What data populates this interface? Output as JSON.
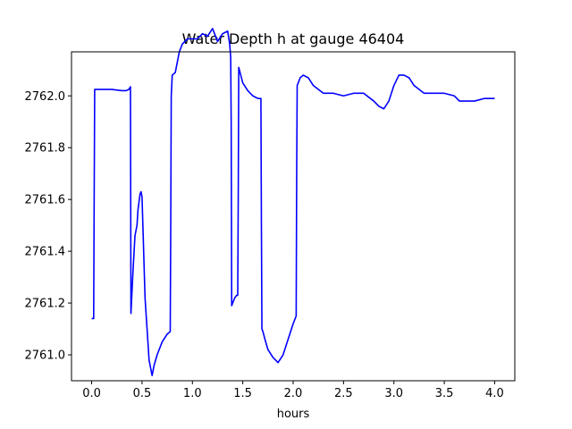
{
  "chart_data": {
    "type": "line",
    "title": "Water Depth h at gauge 46404",
    "xlabel": "hours",
    "ylabel": "",
    "xlim": [
      -0.2,
      4.2
    ],
    "ylim": [
      2760.9,
      2762.17
    ],
    "x_ticks": [
      0.0,
      0.5,
      1.0,
      1.5,
      2.0,
      2.5,
      3.0,
      3.5,
      4.0
    ],
    "x_tick_labels": [
      "0.0",
      "0.5",
      "1.0",
      "1.5",
      "2.0",
      "2.5",
      "3.0",
      "3.5",
      "4.0"
    ],
    "y_ticks": [
      2761.0,
      2761.2,
      2761.4,
      2761.6,
      2761.8,
      2762.0
    ],
    "y_tick_labels": [
      "2761.0",
      "2761.2",
      "2761.4",
      "2761.6",
      "2761.8",
      "2762.0"
    ],
    "grid": false,
    "series": [
      {
        "color": "#0000ff",
        "x": [
          0.0,
          0.02,
          0.025,
          0.03,
          0.1,
          0.2,
          0.3,
          0.34,
          0.37,
          0.385,
          0.386,
          0.39,
          0.41,
          0.43,
          0.45,
          0.46,
          0.48,
          0.49,
          0.5,
          0.51,
          0.53,
          0.55,
          0.57,
          0.6,
          0.62,
          0.65,
          0.7,
          0.75,
          0.78,
          0.785,
          0.79,
          0.8,
          0.83,
          0.87,
          0.9,
          0.95,
          1.0,
          1.05,
          1.1,
          1.15,
          1.2,
          1.25,
          1.3,
          1.35,
          1.37,
          1.38,
          1.385,
          1.39,
          1.4,
          1.42,
          1.44,
          1.45,
          1.455,
          1.46,
          1.48,
          1.5,
          1.55,
          1.6,
          1.65,
          1.68,
          1.685,
          1.69,
          1.7,
          1.72,
          1.75,
          1.8,
          1.85,
          1.9,
          1.95,
          2.0,
          2.03,
          2.035,
          2.04,
          2.07,
          2.1,
          2.15,
          2.2,
          2.3,
          2.4,
          2.5,
          2.6,
          2.7,
          2.8,
          2.85,
          2.9,
          2.95,
          3.0,
          3.05,
          3.1,
          3.15,
          3.2,
          3.3,
          3.4,
          3.5,
          3.6,
          3.65,
          3.7,
          3.8,
          3.9,
          4.0
        ],
        "y": [
          2761.14,
          2761.14,
          2761.6,
          2762.025,
          2762.025,
          2762.025,
          2762.02,
          2762.02,
          2762.025,
          2762.035,
          2761.9,
          2761.16,
          2761.32,
          2761.46,
          2761.5,
          2761.56,
          2761.62,
          2761.63,
          2761.61,
          2761.48,
          2761.22,
          2761.1,
          2760.98,
          2760.92,
          2760.96,
          2761.0,
          2761.05,
          2761.08,
          2761.09,
          2761.5,
          2762.0,
          2762.08,
          2762.09,
          2762.17,
          2762.2,
          2762.22,
          2762.22,
          2762.22,
          2762.24,
          2762.23,
          2762.26,
          2762.21,
          2762.24,
          2762.25,
          2762.2,
          2762.15,
          2761.9,
          2761.19,
          2761.2,
          2761.22,
          2761.23,
          2761.23,
          2761.6,
          2762.11,
          2762.08,
          2762.05,
          2762.02,
          2762.0,
          2761.99,
          2761.99,
          2761.5,
          2761.1,
          2761.09,
          2761.06,
          2761.02,
          2760.99,
          2760.97,
          2761.0,
          2761.06,
          2761.12,
          2761.15,
          2761.7,
          2762.04,
          2762.07,
          2762.08,
          2762.07,
          2762.04,
          2762.01,
          2762.01,
          2762.0,
          2762.01,
          2762.01,
          2761.98,
          2761.96,
          2761.95,
          2761.98,
          2762.04,
          2762.08,
          2762.08,
          2762.07,
          2762.04,
          2762.01,
          2762.01,
          2762.01,
          2762.0,
          2761.98,
          2761.98,
          2761.98,
          2761.99,
          2761.99
        ]
      }
    ]
  }
}
